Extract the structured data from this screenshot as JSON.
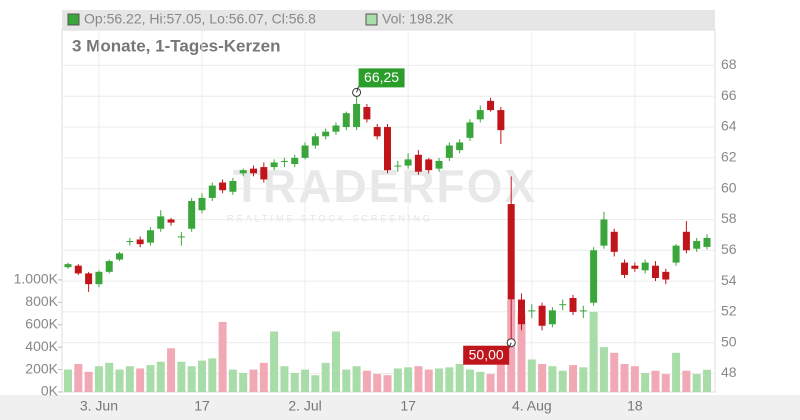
{
  "chart_data": {
    "type": "candlestick",
    "ohlc_label": "Op:56.22, Hi:57.05, Lo:56.07, Cl:56.8",
    "volume_label": "Vol: 198.2K",
    "subtitle": "3 Monate, 1-Tages-Kerzen",
    "watermark": "TRADERFOX",
    "watermark_sub": "REALTIME STOCK SCREENING",
    "up_color": "#3aa53a",
    "down_color": "#c0151b",
    "volume_up_color": "#a8dca8",
    "volume_down_color": "#f2a9b6",
    "categories": [
      null,
      null,
      null,
      "3. Jun",
      null,
      null,
      null,
      null,
      null,
      null,
      null,
      null,
      null,
      "17",
      null,
      null,
      null,
      null,
      null,
      null,
      null,
      null,
      null,
      "2. Jul",
      null,
      null,
      null,
      null,
      null,
      null,
      null,
      null,
      null,
      "17",
      null,
      null,
      null,
      null,
      null,
      null,
      null,
      null,
      null,
      null,
      null,
      "4. Aug",
      null,
      null,
      null,
      null,
      null,
      null,
      null,
      null,
      null,
      "18",
      null,
      null,
      null,
      null,
      null,
      null,
      null
    ],
    "open": [
      54.9,
      55.0,
      54.5,
      53.8,
      54.6,
      55.4,
      56.6,
      56.7,
      56.5,
      57.4,
      58.0,
      56.9,
      57.4,
      58.6,
      59.4,
      60.4,
      59.8,
      61.0,
      61.3,
      61.4,
      61.4,
      61.8,
      61.6,
      62.0,
      62.8,
      63.4,
      63.7,
      64.0,
      64.0,
      65.3,
      64.0,
      64.0,
      61.5,
      61.5,
      62.2,
      61.9,
      61.3,
      62.0,
      62.5,
      63.3,
      64.5,
      65.7,
      65.1,
      59.0,
      52.8,
      52.1,
      52.4,
      51.2,
      52.5,
      52.9,
      52.1,
      52.6,
      56.3,
      57.2,
      55.2,
      55.0,
      54.7,
      55.0,
      54.6,
      55.2,
      57.2,
      56.1,
      56.22
    ],
    "high": [
      55.2,
      55.1,
      54.6,
      54.7,
      55.4,
      55.9,
      56.8,
      56.9,
      57.5,
      58.6,
      58.1,
      57.2,
      59.4,
      59.7,
      60.4,
      60.6,
      60.7,
      61.3,
      61.5,
      61.7,
      61.9,
      62.0,
      62.2,
      63.0,
      63.6,
      63.9,
      64.3,
      65.0,
      66.25,
      65.5,
      64.2,
      64.2,
      61.8,
      62.3,
      62.5,
      62.0,
      62.0,
      63.0,
      63.2,
      64.5,
      65.4,
      65.9,
      65.3,
      60.8,
      53.2,
      52.5,
      52.6,
      52.3,
      52.8,
      53.1,
      52.4,
      56.2,
      58.5,
      57.4,
      55.4,
      55.2,
      55.4,
      55.3,
      54.8,
      56.4,
      57.9,
      56.8,
      57.05
    ],
    "low": [
      54.8,
      54.4,
      53.3,
      53.6,
      54.5,
      55.3,
      56.3,
      56.2,
      56.3,
      57.2,
      57.6,
      56.3,
      57.2,
      58.4,
      59.2,
      59.7,
      59.6,
      60.8,
      60.8,
      60.4,
      61.2,
      61.4,
      61.4,
      61.9,
      62.6,
      63.2,
      63.5,
      63.8,
      63.8,
      64.3,
      63.2,
      61.0,
      61.1,
      61.3,
      60.9,
      61.0,
      61.1,
      61.8,
      62.3,
      63.1,
      64.3,
      65.0,
      62.9,
      50.0,
      50.8,
      51.6,
      50.8,
      51.0,
      52.1,
      51.8,
      51.6,
      52.4,
      56.1,
      55.6,
      54.2,
      54.6,
      54.5,
      54.0,
      53.8,
      55.0,
      55.8,
      55.9,
      56.07
    ],
    "close": [
      55.1,
      54.5,
      53.8,
      54.6,
      55.3,
      55.8,
      56.6,
      56.4,
      57.3,
      58.2,
      57.8,
      56.9,
      59.2,
      59.4,
      60.2,
      59.9,
      60.5,
      61.2,
      61.0,
      60.6,
      61.7,
      61.8,
      62.0,
      62.8,
      63.4,
      63.7,
      64.1,
      64.9,
      65.5,
      64.5,
      63.4,
      61.2,
      61.5,
      61.9,
      61.1,
      61.2,
      61.8,
      62.8,
      63.0,
      64.3,
      65.1,
      65.1,
      63.8,
      52.8,
      51.2,
      52.1,
      51.1,
      52.1,
      52.5,
      52.0,
      52.1,
      56.0,
      58.0,
      55.9,
      54.4,
      54.8,
      55.2,
      54.2,
      54.1,
      56.3,
      56.0,
      56.6,
      56.8
    ],
    "volume": [
      200,
      250,
      180,
      230,
      260,
      200,
      230,
      210,
      240,
      270,
      390,
      270,
      230,
      280,
      300,
      625,
      200,
      170,
      200,
      260,
      540,
      230,
      170,
      200,
      150,
      260,
      540,
      200,
      230,
      190,
      160,
      150,
      210,
      220,
      230,
      200,
      210,
      220,
      250,
      200,
      180,
      160,
      350,
      820,
      700,
      290,
      250,
      230,
      190,
      240,
      220,
      715,
      400,
      350,
      250,
      230,
      170,
      190,
      160,
      350,
      190,
      160,
      198.2
    ],
    "annotations": [
      {
        "text": "66,25",
        "value": 66.25,
        "index": 28
      },
      {
        "text": "50,00",
        "value": 50.0,
        "index": 43
      }
    ],
    "ylim": [
      46.8,
      70.3
    ],
    "yticks": [
      48,
      50,
      52,
      54,
      56,
      58,
      60,
      62,
      64,
      66,
      68
    ],
    "y2lim": [
      0,
      3230
    ],
    "y2ticks": [
      {
        "value": 0,
        "label": "0K"
      },
      {
        "value": 200,
        "label": "200K"
      },
      {
        "value": 400,
        "label": "400K"
      },
      {
        "value": 600,
        "label": "600K"
      },
      {
        "value": 800,
        "label": "800K"
      },
      {
        "value": 1000,
        "label": "1.000K"
      }
    ],
    "grid": true
  }
}
